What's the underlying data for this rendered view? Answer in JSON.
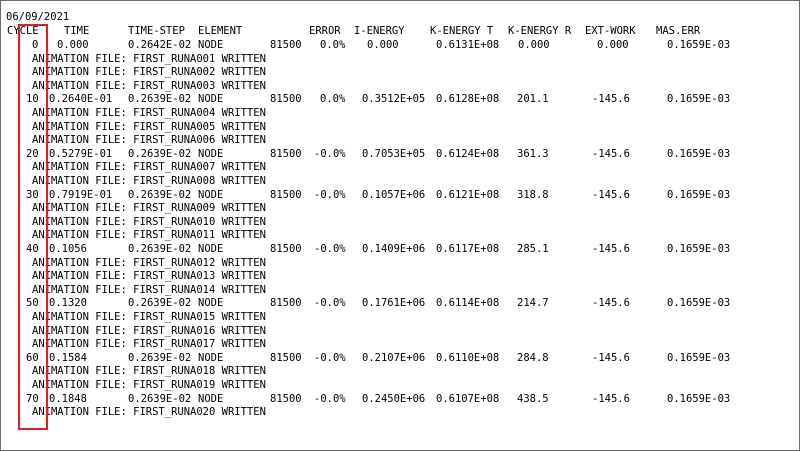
{
  "date": "06/09/2021",
  "header": {
    "cycle": "CYCLE",
    "time": "TIME",
    "time_step": "TIME-STEP",
    "element": "ELEMENT",
    "error": "ERROR",
    "i_energy": "I-ENERGY",
    "k_energy_t": "K-ENERGY T",
    "k_energy_r": "K-ENERGY R",
    "ext_work": "EXT-WORK",
    "mas_err": "MAS.ERR"
  },
  "rows": [
    {
      "cycle": "0",
      "time": "0.000",
      "time_step": "0.2642E-02",
      "element": "NODE",
      "node": "81500",
      "error": "0.0%",
      "i_energy": "0.000",
      "k_energy_t": "0.6131E+08",
      "k_energy_r": "0.000",
      "ext_work": "0.000",
      "mas_err": "0.1659E-03",
      "anim": [
        "ANIMATION FILE: FIRST_RUNA001 WRITTEN",
        "ANIMATION FILE: FIRST_RUNA002 WRITTEN",
        "ANIMATION FILE: FIRST_RUNA003 WRITTEN"
      ]
    },
    {
      "cycle": "10",
      "time": "0.2640E-01",
      "time_step": "0.2639E-02",
      "element": "NODE",
      "node": "81500",
      "error": "0.0%",
      "i_energy": "0.3512E+05",
      "k_energy_t": "0.6128E+08",
      "k_energy_r": "201.1",
      "ext_work": "-145.6",
      "mas_err": "0.1659E-03",
      "anim": [
        "ANIMATION FILE: FIRST_RUNA004 WRITTEN",
        "ANIMATION FILE: FIRST_RUNA005 WRITTEN",
        "ANIMATION FILE: FIRST_RUNA006 WRITTEN"
      ]
    },
    {
      "cycle": "20",
      "time": "0.5279E-01",
      "time_step": "0.2639E-02",
      "element": "NODE",
      "node": "81500",
      "error": "-0.0%",
      "i_energy": "0.7053E+05",
      "k_energy_t": "0.6124E+08",
      "k_energy_r": "361.3",
      "ext_work": "-145.6",
      "mas_err": "0.1659E-03",
      "anim": [
        "ANIMATION FILE: FIRST_RUNA007 WRITTEN",
        "ANIMATION FILE: FIRST_RUNA008 WRITTEN"
      ]
    },
    {
      "cycle": "30",
      "time": "0.7919E-01",
      "time_step": "0.2639E-02",
      "element": "NODE",
      "node": "81500",
      "error": "-0.0%",
      "i_energy": "0.1057E+06",
      "k_energy_t": "0.6121E+08",
      "k_energy_r": "318.8",
      "ext_work": "-145.6",
      "mas_err": "0.1659E-03",
      "anim": [
        "ANIMATION FILE: FIRST_RUNA009 WRITTEN",
        "ANIMATION FILE: FIRST_RUNA010 WRITTEN",
        "ANIMATION FILE: FIRST_RUNA011 WRITTEN"
      ]
    },
    {
      "cycle": "40",
      "time": "0.1056",
      "time_step": "0.2639E-02",
      "element": "NODE",
      "node": "81500",
      "error": "-0.0%",
      "i_energy": "0.1409E+06",
      "k_energy_t": "0.6117E+08",
      "k_energy_r": "285.1",
      "ext_work": "-145.6",
      "mas_err": "0.1659E-03",
      "anim": [
        "ANIMATION FILE: FIRST_RUNA012 WRITTEN",
        "ANIMATION FILE: FIRST_RUNA013 WRITTEN",
        "ANIMATION FILE: FIRST_RUNA014 WRITTEN"
      ]
    },
    {
      "cycle": "50",
      "time": "0.1320",
      "time_step": "0.2639E-02",
      "element": "NODE",
      "node": "81500",
      "error": "-0.0%",
      "i_energy": "0.1761E+06",
      "k_energy_t": "0.6114E+08",
      "k_energy_r": "214.7",
      "ext_work": "-145.6",
      "mas_err": "0.1659E-03",
      "anim": [
        "ANIMATION FILE: FIRST_RUNA015 WRITTEN",
        "ANIMATION FILE: FIRST_RUNA016 WRITTEN",
        "ANIMATION FILE: FIRST_RUNA017 WRITTEN"
      ]
    },
    {
      "cycle": "60",
      "time": "0.1584",
      "time_step": "0.2639E-02",
      "element": "NODE",
      "node": "81500",
      "error": "-0.0%",
      "i_energy": "0.2107E+06",
      "k_energy_t": "0.6110E+08",
      "k_energy_r": "284.8",
      "ext_work": "-145.6",
      "mas_err": "0.1659E-03",
      "anim": [
        "ANIMATION FILE: FIRST_RUNA018 WRITTEN",
        "ANIMATION FILE: FIRST_RUNA019 WRITTEN"
      ]
    },
    {
      "cycle": "70",
      "time": "0.1848",
      "time_step": "0.2639E-02",
      "element": "NODE",
      "node": "81500",
      "error": "-0.0%",
      "i_energy": "0.2450E+06",
      "k_energy_t": "0.6107E+08",
      "k_energy_r": "438.5",
      "ext_work": "-145.6",
      "mas_err": "0.1659E-03",
      "anim": [
        "ANIMATION FILE: FIRST_RUNA020 WRITTEN"
      ]
    }
  ],
  "colors": {
    "highlight": "#e02020",
    "text": "#000000",
    "background": "#ffffff"
  }
}
